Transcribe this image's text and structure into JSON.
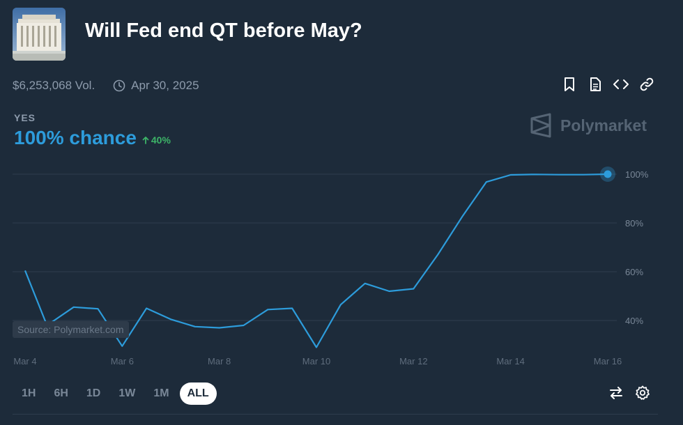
{
  "market": {
    "title": "Will Fed end QT before May?",
    "volume": "$6,253,068 Vol.",
    "end_date": "Apr 30, 2025",
    "outcome_label": "YES",
    "chance": "100% chance",
    "change": "40%",
    "brand": "Polymarket",
    "source": "Source: Polymarket.com",
    "thumbnail_icon": "federal-reserve-building-image"
  },
  "actions": [
    {
      "icon": "bookmark-icon"
    },
    {
      "icon": "document-icon"
    },
    {
      "icon": "embed-code-icon"
    },
    {
      "icon": "link-icon"
    }
  ],
  "ranges": [
    {
      "label": "1H",
      "active": false
    },
    {
      "label": "6H",
      "active": false
    },
    {
      "label": "1D",
      "active": false
    },
    {
      "label": "1W",
      "active": false
    },
    {
      "label": "1M",
      "active": false
    },
    {
      "label": "ALL",
      "active": true
    }
  ],
  "tools": [
    {
      "icon": "swap-arrows-icon"
    },
    {
      "icon": "gear-icon"
    }
  ],
  "colors": {
    "background": "#1d2b3a",
    "line": "#2d9cdb",
    "positive": "#3db468",
    "muted": "#8d9bac",
    "grid": "#2e3d4d"
  },
  "chart_data": {
    "type": "line",
    "x_ticks": [
      "Mar 4",
      "Mar 6",
      "Mar 8",
      "Mar 10",
      "Mar 12",
      "Mar 14",
      "Mar 16"
    ],
    "y_ticks": [
      "40%",
      "60%",
      "80%",
      "100%"
    ],
    "y_tick_values": [
      40,
      60,
      80,
      100
    ],
    "xlim": [
      4,
      16.2
    ],
    "ylim": [
      28,
      103
    ],
    "grid": true,
    "series": [
      {
        "x": [
          4,
          4.45,
          5,
          5.5,
          6,
          6.5,
          7,
          7.5,
          8,
          8.5,
          9,
          9.5,
          10,
          10.5,
          11,
          11.5,
          12,
          12.5,
          13,
          13.5,
          14,
          14.5,
          15,
          15.5,
          16
        ],
        "values": [
          60.5,
          38,
          45.5,
          44.8,
          29.5,
          45,
          40.5,
          37.5,
          37,
          38,
          44.5,
          45,
          29,
          46.5,
          55.2,
          52,
          53,
          67,
          82.5,
          96.8,
          99.7,
          99.9,
          99.8,
          99.8,
          100
        ]
      }
    ]
  }
}
